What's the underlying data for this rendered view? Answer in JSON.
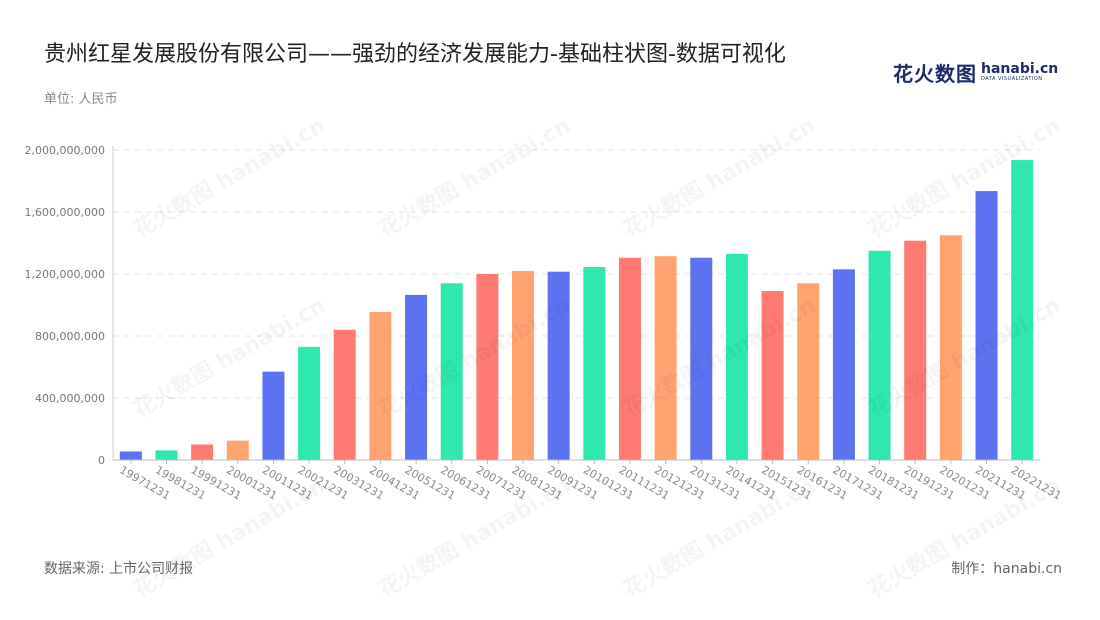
{
  "header": {
    "title": "贵州红星发展股份有限公司——强劲的经济发展能力-基础柱状图-数据可视化",
    "unit": "单位: 人民币"
  },
  "logo": {
    "cn": "花火数图",
    "en": "hanabi.cn",
    "sub": "DATA VISUALIZATION"
  },
  "footer": {
    "source": "数据来源: 上市公司财报",
    "maker": "制作：hanabi.cn"
  },
  "watermark_text": "花火数图 hanabi.cn",
  "chart_data": {
    "type": "bar",
    "categories": [
      "19971231",
      "19981231",
      "19991231",
      "20001231",
      "20011231",
      "20021231",
      "20031231",
      "20041231",
      "20051231",
      "20061231",
      "20071231",
      "20081231",
      "20091231",
      "20101231",
      "20111231",
      "20121231",
      "20131231",
      "20141231",
      "20151231",
      "20161231",
      "20171231",
      "20181231",
      "20191231",
      "20201231",
      "20211231",
      "20221231"
    ],
    "values": [
      55000000,
      62000000,
      100000000,
      125000000,
      570000000,
      730000000,
      840000000,
      955000000,
      1065000000,
      1140000000,
      1200000000,
      1220000000,
      1215000000,
      1245000000,
      1305000000,
      1315000000,
      1305000000,
      1330000000,
      1090000000,
      1140000000,
      1230000000,
      1350000000,
      1415000000,
      1450000000,
      1735000000,
      1935000000
    ],
    "ylim": [
      0,
      2000000000
    ],
    "yticks": [
      0,
      400000000,
      800000000,
      1200000000,
      1600000000,
      2000000000
    ],
    "ytick_labels": [
      "0",
      "400,000,000",
      "800,000,000",
      "1,200,000,000",
      "1,600,000,000",
      "2,000,000,000"
    ],
    "palette": [
      "#5b73f0",
      "#2ee8b0",
      "#ff7b72",
      "#ffa470"
    ],
    "grid": true,
    "legend": false
  }
}
